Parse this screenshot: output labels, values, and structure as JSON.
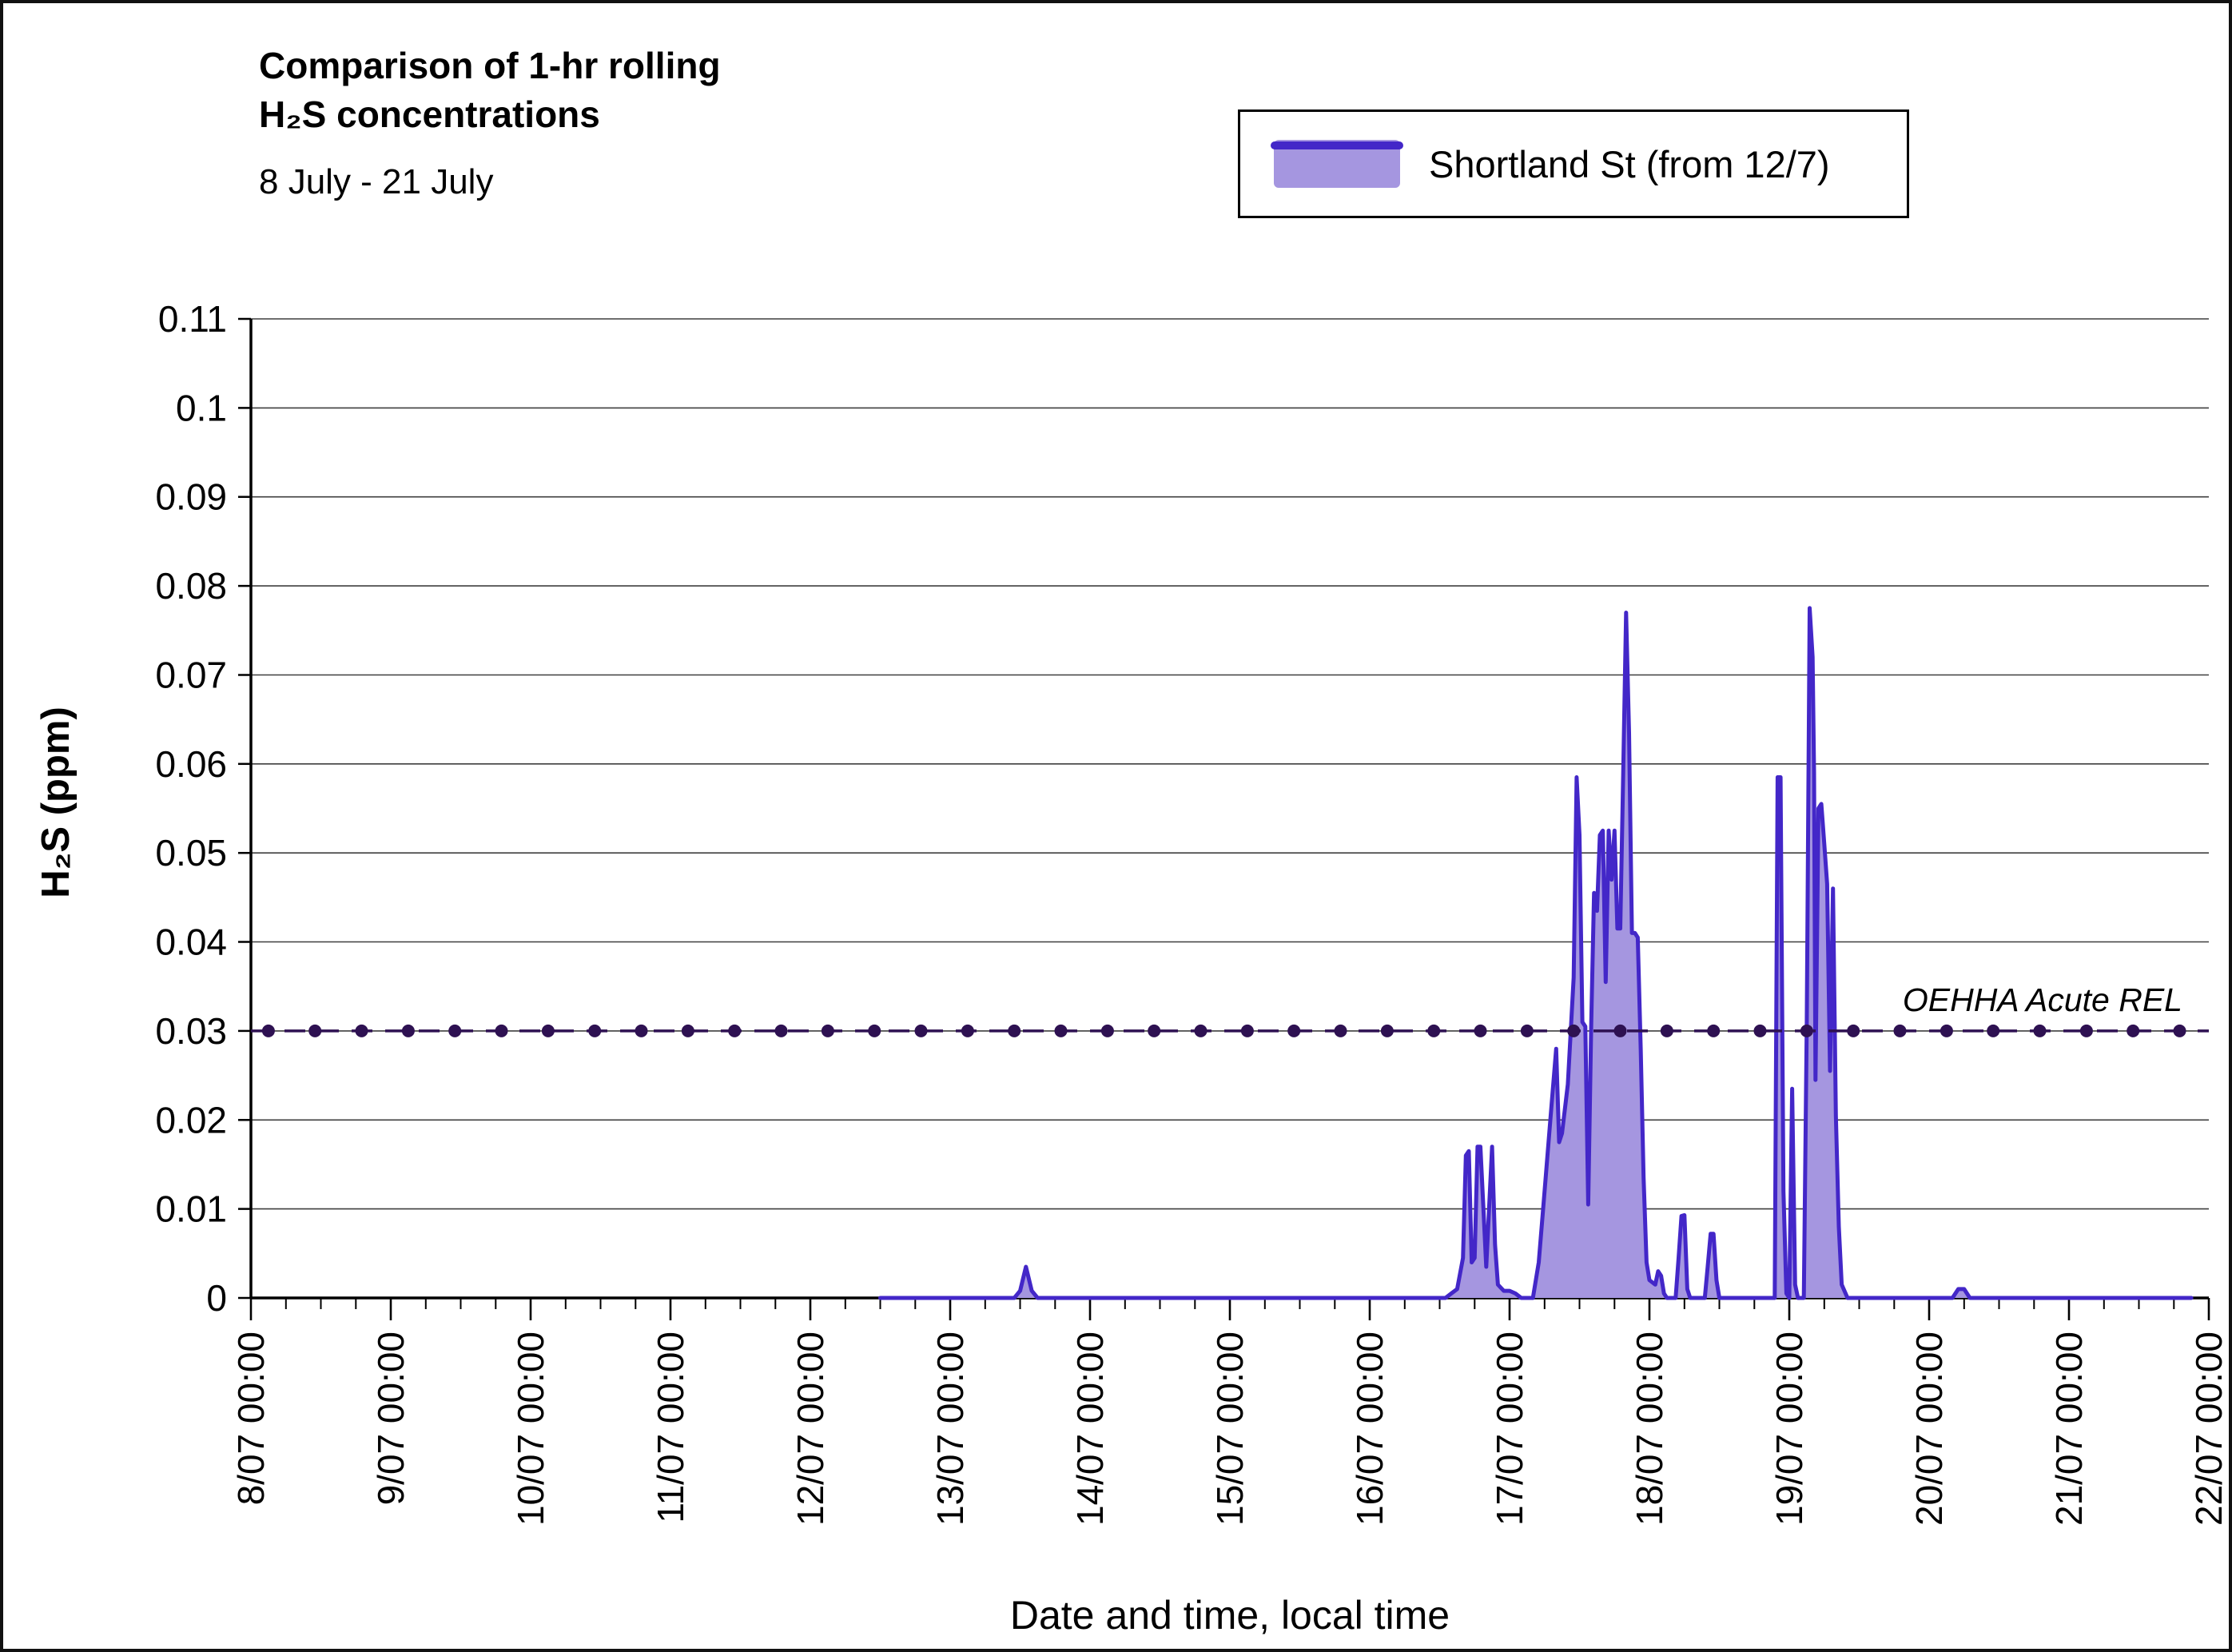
{
  "chart_data": {
    "type": "area",
    "title_line1": "Comparison of 1-hr rolling",
    "title_line2": "H₂S concentrations",
    "subtitle": "8 July - 21 July",
    "xlabel": "Date and time, local time",
    "ylabel": "H₂S (ppm)",
    "ylim": [
      0,
      0.11
    ],
    "ytick_step": 0.01,
    "y_tick_labels": [
      "0.11",
      "0.1",
      "0.09",
      "0.08",
      "0.07",
      "0.06",
      "0.05",
      "0.04",
      "0.03",
      "0.02",
      "0.01",
      "0"
    ],
    "x_hours_range": [
      0,
      336
    ],
    "x_tick_labels": [
      "8/07 00:00",
      "9/07 00:00",
      "10/07 00:00",
      "11/07 00:00",
      "12/07 00:00",
      "13/07 00:00",
      "14/07 00:00",
      "15/07 00:00",
      "16/07 00:00",
      "17/07 00:00",
      "18/07 00:00",
      "19/07 00:00",
      "20/07 00:00",
      "21/07 00:00",
      "22/07 00:00"
    ],
    "minor_tick_hours": 6,
    "grid": "horizontal",
    "legend_position": "top-right",
    "rel_line": {
      "label": "OEHHA Acute REL",
      "value": 0.03,
      "marker_every_hours": 8
    },
    "series": [
      {
        "name": "Shortland St (from 12/7)",
        "points": [
          [
            108,
            0
          ],
          [
            131,
            0
          ],
          [
            132,
            0.0008
          ],
          [
            133,
            0.0035
          ],
          [
            134,
            0.0008
          ],
          [
            135,
            0
          ],
          [
            205,
            0
          ],
          [
            206,
            0.0005
          ],
          [
            207,
            0.001
          ],
          [
            208,
            0.0045
          ],
          [
            208.5,
            0.016
          ],
          [
            209,
            0.0165
          ],
          [
            209.5,
            0.004
          ],
          [
            210,
            0.0045
          ],
          [
            210.5,
            0.017
          ],
          [
            211,
            0.017
          ],
          [
            212,
            0.0035
          ],
          [
            213,
            0.017
          ],
          [
            213.5,
            0.006
          ],
          [
            214,
            0.0015
          ],
          [
            215,
            0.0008
          ],
          [
            216,
            0.0008
          ],
          [
            217,
            0.0005
          ],
          [
            218,
            0
          ],
          [
            220,
            0
          ],
          [
            221,
            0.004
          ],
          [
            222,
            0.012
          ],
          [
            223,
            0.02
          ],
          [
            224,
            0.028
          ],
          [
            224.5,
            0.0175
          ],
          [
            225,
            0.0185
          ],
          [
            226,
            0.024
          ],
          [
            227,
            0.036
          ],
          [
            227.5,
            0.0585
          ],
          [
            228,
            0.052
          ],
          [
            228.5,
            0.031
          ],
          [
            229,
            0.0305
          ],
          [
            229.5,
            0.0105
          ],
          [
            230,
            0.0305
          ],
          [
            230.5,
            0.0455
          ],
          [
            231,
            0.0435
          ],
          [
            231.5,
            0.052
          ],
          [
            232,
            0.0525
          ],
          [
            232.5,
            0.0355
          ],
          [
            233,
            0.0525
          ],
          [
            233.5,
            0.047
          ],
          [
            234,
            0.0525
          ],
          [
            234.5,
            0.0415
          ],
          [
            235,
            0.0415
          ],
          [
            235.5,
            0.059
          ],
          [
            236,
            0.077
          ],
          [
            236.5,
            0.0635
          ],
          [
            237,
            0.041
          ],
          [
            237.5,
            0.041
          ],
          [
            238,
            0.0405
          ],
          [
            238.5,
            0.028
          ],
          [
            239,
            0.0135
          ],
          [
            239.5,
            0.004
          ],
          [
            240,
            0.002
          ],
          [
            241,
            0.0015
          ],
          [
            241.5,
            0.003
          ],
          [
            242,
            0.0025
          ],
          [
            242.5,
            0.0005
          ],
          [
            243,
            0
          ],
          [
            244.5,
            0
          ],
          [
            245,
            0.0045
          ],
          [
            245.5,
            0.0092
          ],
          [
            246,
            0.0093
          ],
          [
            246.5,
            0.001
          ],
          [
            247,
            0
          ],
          [
            249.5,
            0
          ],
          [
            250,
            0.0035
          ],
          [
            250.5,
            0.0072
          ],
          [
            251,
            0.0072
          ],
          [
            251.5,
            0.002
          ],
          [
            252,
            0
          ],
          [
            256,
            0
          ],
          [
            261.5,
            0
          ],
          [
            262,
            0.0585
          ],
          [
            262.5,
            0.0585
          ],
          [
            263,
            0.012
          ],
          [
            263.5,
            0.0005
          ],
          [
            264,
            0
          ],
          [
            264.5,
            0.0235
          ],
          [
            265,
            0.0015
          ],
          [
            265.5,
            0
          ],
          [
            266.5,
            0
          ],
          [
            267,
            0.031
          ],
          [
            267.5,
            0.0775
          ],
          [
            268,
            0.072
          ],
          [
            268.25,
            0.059
          ],
          [
            268.5,
            0.0245
          ],
          [
            269,
            0.055
          ],
          [
            269.5,
            0.0555
          ],
          [
            270,
            0.051
          ],
          [
            270.5,
            0.0465
          ],
          [
            271,
            0.0255
          ],
          [
            271.5,
            0.046
          ],
          [
            272,
            0.0205
          ],
          [
            272.5,
            0.008
          ],
          [
            273,
            0.0015
          ],
          [
            274,
            0
          ],
          [
            292,
            0
          ],
          [
            293,
            0.001
          ],
          [
            294,
            0.001
          ],
          [
            295,
            0
          ],
          [
            333,
            0
          ]
        ]
      }
    ],
    "colors": {
      "line": "#4327c8",
      "fill": "#a596e0",
      "rel": "#2e1152",
      "axis": "#000000",
      "grid": "#3f3f3f"
    }
  }
}
